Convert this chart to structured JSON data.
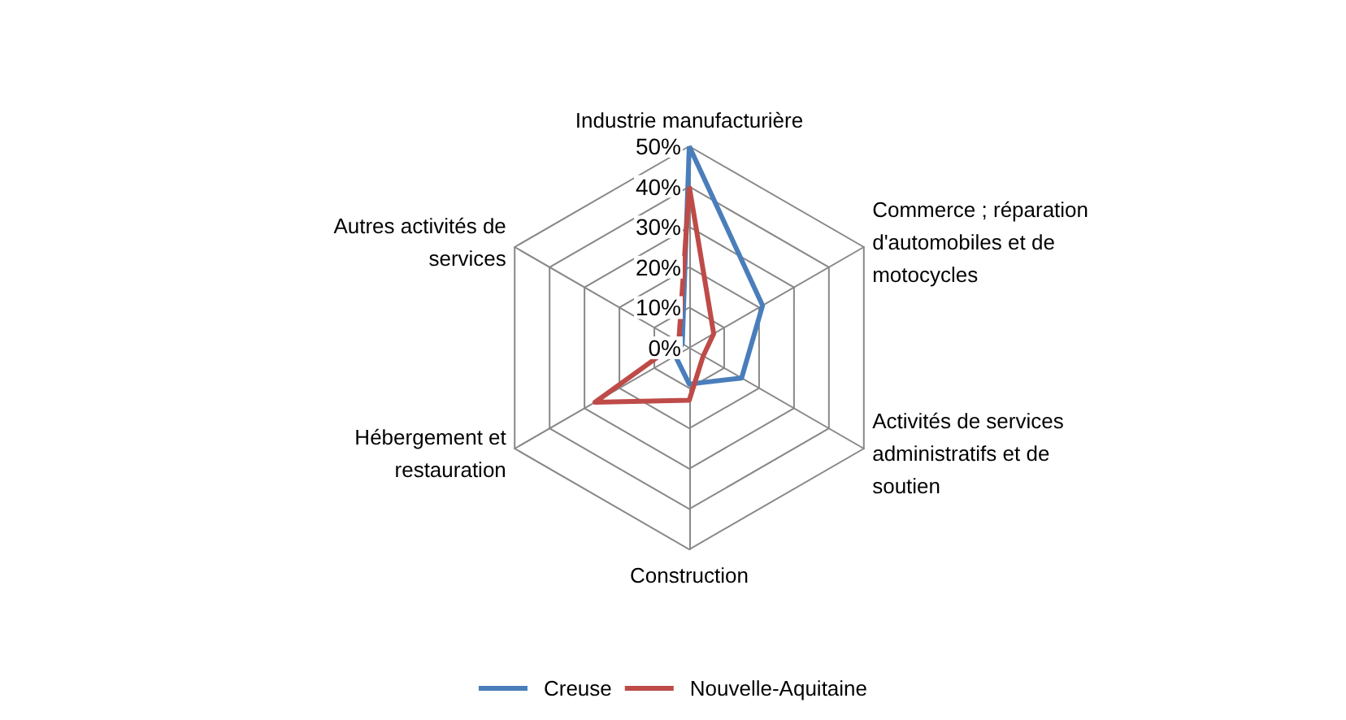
{
  "chart_data": {
    "type": "radar",
    "categories": [
      "Industrie manufacturière",
      "Commerce ; réparation d'automobiles et de motocycles",
      "Activités de services administratifs et de soutien",
      "Construction",
      "Hébergement et restauration",
      "Autres activités de services"
    ],
    "series": [
      {
        "name": "Creuse",
        "color": "#4a7ebb",
        "values": [
          50,
          21,
          15,
          9,
          4,
          2
        ]
      },
      {
        "name": "Nouvelle-Aquitaine",
        "color": "#be4b48",
        "values": [
          40,
          7,
          4,
          13,
          27,
          3
        ]
      }
    ],
    "ylim": [
      0,
      50
    ],
    "yticks": [
      {
        "value": 0,
        "label": "0%"
      },
      {
        "value": 10,
        "label": "10%"
      },
      {
        "value": 20,
        "label": "20%"
      },
      {
        "value": 30,
        "label": "30%"
      },
      {
        "value": 40,
        "label": "40%"
      },
      {
        "value": 50,
        "label": "50%"
      }
    ],
    "legend": "bottom"
  }
}
